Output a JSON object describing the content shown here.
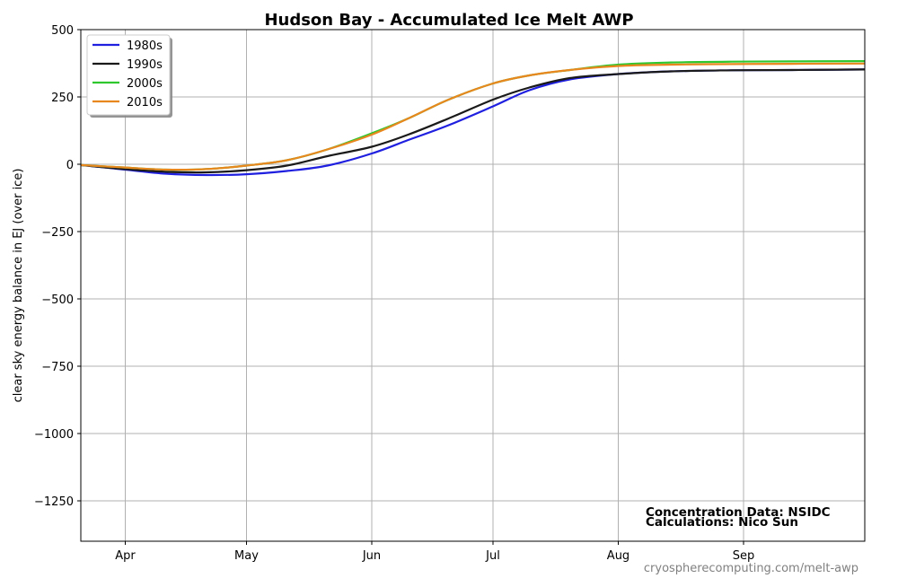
{
  "chart_data": {
    "type": "line",
    "title": "Hudson Bay - Accumulated Ice Melt AWP",
    "xlabel": "",
    "ylabel": "clear sky energy balance in  EJ (over ice)",
    "x_tick_labels": [
      "Apr",
      "May",
      "Jun",
      "Jul",
      "Aug",
      "Sep"
    ],
    "x_tick_days": [
      0,
      30,
      61,
      91,
      122,
      153
    ],
    "xlim": [
      -11,
      183
    ],
    "y_ticks": [
      500,
      250,
      0,
      -250,
      -500,
      -750,
      -1000,
      -1250
    ],
    "y_tick_labels": [
      "500",
      "250",
      "0",
      "−250",
      "−500",
      "−750",
      "−1000",
      "−1250"
    ],
    "ylim": [
      -1400,
      500
    ],
    "grid": true,
    "legend_position": "top-left",
    "x": [
      -11,
      0,
      10,
      20,
      30,
      40,
      50,
      61,
      70,
      80,
      91,
      100,
      110,
      122,
      135,
      150,
      165,
      183
    ],
    "series": [
      {
        "name": "1980s",
        "color": "#1f1fe0",
        "values": [
          -3,
          -20,
          -35,
          -40,
          -37,
          -25,
          -5,
          40,
          90,
          145,
          215,
          275,
          315,
          335,
          345,
          349,
          350,
          352
        ]
      },
      {
        "name": "1990s",
        "color": "#1a1a1a",
        "values": [
          -3,
          -18,
          -28,
          -30,
          -22,
          -5,
          30,
          65,
          110,
          170,
          240,
          285,
          320,
          335,
          345,
          349,
          350,
          352
        ]
      },
      {
        "name": "2000s",
        "color": "#2ec72e",
        "values": [
          -3,
          -12,
          -20,
          -18,
          -5,
          15,
          55,
          115,
          170,
          240,
          300,
          330,
          350,
          370,
          378,
          381,
          382,
          383
        ]
      },
      {
        "name": "2010s",
        "color": "#e8871e",
        "values": [
          -3,
          -12,
          -20,
          -18,
          -5,
          15,
          55,
          110,
          170,
          240,
          300,
          330,
          350,
          365,
          370,
          372,
          373,
          374
        ]
      }
    ],
    "annotations": [
      "Concentration Data: NSIDC",
      "Calculations: Nico Sun"
    ],
    "credit": "cryospherecomputing.com/melt-awp"
  }
}
